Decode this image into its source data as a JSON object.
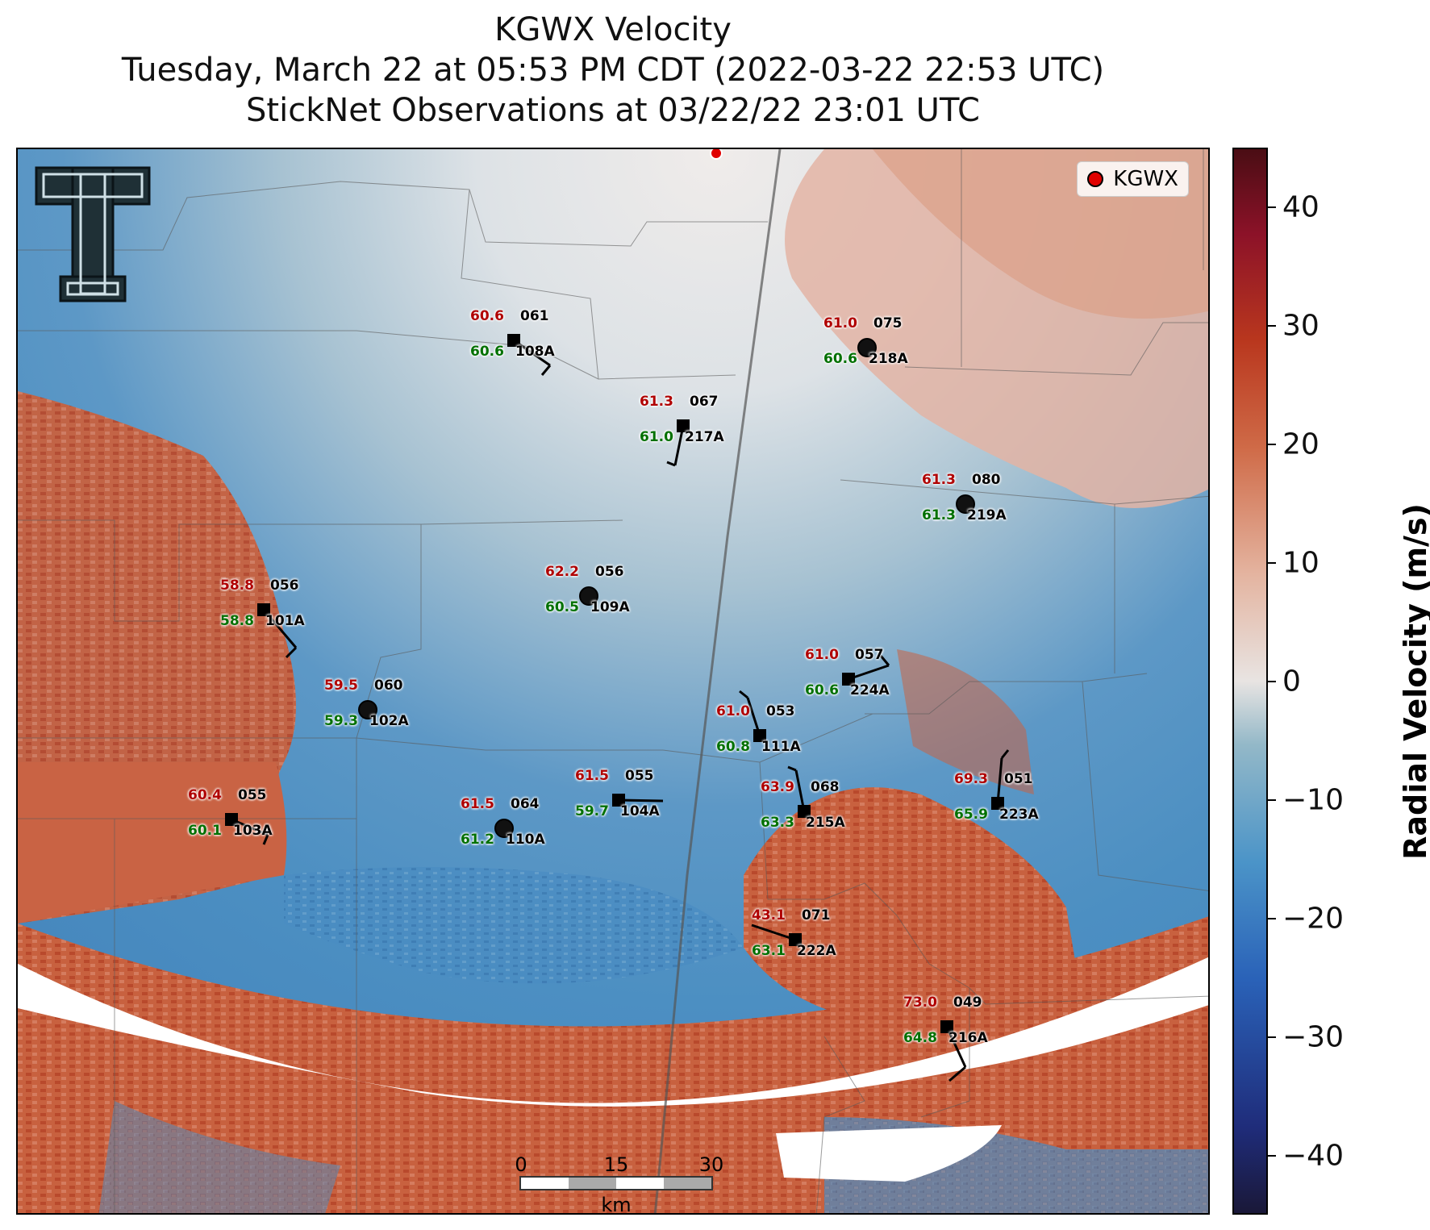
{
  "titles": {
    "line1": "KGWX Velocity",
    "line2": "Tuesday, March 22 at 05:53 PM CDT (2022-03-22 22:53 UTC)",
    "line3": "StickNet Observations at 03/22/22 23:01 UTC"
  },
  "legend": {
    "label": "KGWX"
  },
  "colorbar": {
    "title": "Radial Velocity (m/s)",
    "ticks": [
      "40",
      "30",
      "20",
      "10",
      "0",
      "−10",
      "−20",
      "−30",
      "−40"
    ],
    "tick_values": [
      40,
      30,
      20,
      10,
      0,
      -10,
      -20,
      -30,
      -40
    ],
    "range": [
      -45,
      45
    ]
  },
  "scalebar": {
    "ticks": [
      "0",
      "15",
      "30"
    ],
    "unit": "km"
  },
  "stations": [
    {
      "id": "108A",
      "temp": "60.6",
      "dewpoint": "60.6",
      "dir": "061",
      "marker": "square"
    },
    {
      "id": "218A",
      "temp": "61.0",
      "dewpoint": "60.6",
      "dir": "075",
      "marker": "circle"
    },
    {
      "id": "217A",
      "temp": "61.3",
      "dewpoint": "61.0",
      "dir": "067",
      "marker": "square"
    },
    {
      "id": "219A",
      "temp": "61.3",
      "dewpoint": "61.3",
      "dir": "080",
      "marker": "circle"
    },
    {
      "id": "109A",
      "temp": "62.2",
      "dewpoint": "60.5",
      "dir": "056",
      "marker": "circle"
    },
    {
      "id": "101A",
      "temp": "58.8",
      "dewpoint": "58.8",
      "dir": "056",
      "marker": "square"
    },
    {
      "id": "224A",
      "temp": "61.0",
      "dewpoint": "60.6",
      "dir": "057",
      "marker": "square"
    },
    {
      "id": "102A",
      "temp": "59.5",
      "dewpoint": "59.3",
      "dir": "060",
      "marker": "circle"
    },
    {
      "id": "111A",
      "temp": "61.0",
      "dewpoint": "60.8",
      "dir": "053",
      "marker": "square"
    },
    {
      "id": "104A",
      "temp": "61.5",
      "dewpoint": "59.7",
      "dir": "055",
      "marker": "square"
    },
    {
      "id": "215A",
      "temp": "63.9",
      "dewpoint": "63.3",
      "dir": "068",
      "marker": "square"
    },
    {
      "id": "223A",
      "temp": "69.3",
      "dewpoint": "65.9",
      "dir": "051",
      "marker": "square"
    },
    {
      "id": "103A",
      "temp": "60.4",
      "dewpoint": "60.1",
      "dir": "055",
      "marker": "square"
    },
    {
      "id": "110A",
      "temp": "61.5",
      "dewpoint": "61.2",
      "dir": "064",
      "marker": "circle"
    },
    {
      "id": "222A",
      "temp": "43.1",
      "dewpoint": "63.1",
      "dir": "071",
      "marker": "square"
    },
    {
      "id": "216A",
      "temp": "73.0",
      "dewpoint": "64.8",
      "dir": "049",
      "marker": "square"
    }
  ],
  "colors": {
    "inbound": "#3b7fb8",
    "outbound": "#c8553a",
    "neutral": "#ece6e4",
    "temp": "#b00000",
    "dewpoint": "#007000",
    "radar_marker": "#e00000"
  },
  "logo_icon": "texas-tech-double-t-logo"
}
